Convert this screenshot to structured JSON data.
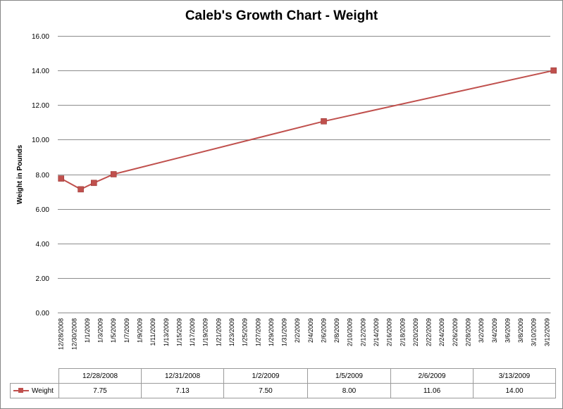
{
  "chart_data": {
    "type": "line",
    "title": "Caleb's Growth Chart - Weight",
    "ylabel": "Weight in Pounds",
    "xlabel": "",
    "ylim": [
      0,
      16
    ],
    "yticks": [
      "0.00",
      "2.00",
      "4.00",
      "6.00",
      "8.00",
      "10.00",
      "12.00",
      "14.00",
      "16.00"
    ],
    "grid": true,
    "date_axis_labels": [
      "12/28/2008",
      "12/30/2008",
      "1/1/2009",
      "1/3/2009",
      "1/5/2009",
      "1/7/2009",
      "1/9/2009",
      "1/11/2009",
      "1/13/2009",
      "1/15/2009",
      "1/17/2009",
      "1/19/2009",
      "1/21/2009",
      "1/23/2009",
      "1/25/2009",
      "1/27/2009",
      "1/29/2009",
      "1/31/2009",
      "2/2/2009",
      "2/4/2009",
      "2/6/2009",
      "2/8/2009",
      "2/10/2009",
      "2/12/2009",
      "2/14/2009",
      "2/16/2009",
      "2/18/2009",
      "2/20/2009",
      "2/22/2009",
      "2/24/2009",
      "2/26/2009",
      "2/28/2009",
      "3/2/2009",
      "3/4/2009",
      "3/6/2009",
      "3/8/2009",
      "3/10/2009",
      "3/12/2009"
    ],
    "series": [
      {
        "name": "Weight",
        "color": "#c0504d",
        "x": [
          "12/28/2008",
          "12/31/2008",
          "1/2/2009",
          "1/5/2009",
          "2/6/2009",
          "3/13/2009"
        ],
        "values": [
          7.75,
          7.13,
          7.5,
          8.0,
          11.06,
          14.0
        ],
        "value_labels": [
          "7.75",
          "7.13",
          "7.50",
          "8.00",
          "11.06",
          "14.00"
        ]
      }
    ],
    "data_table": true
  }
}
